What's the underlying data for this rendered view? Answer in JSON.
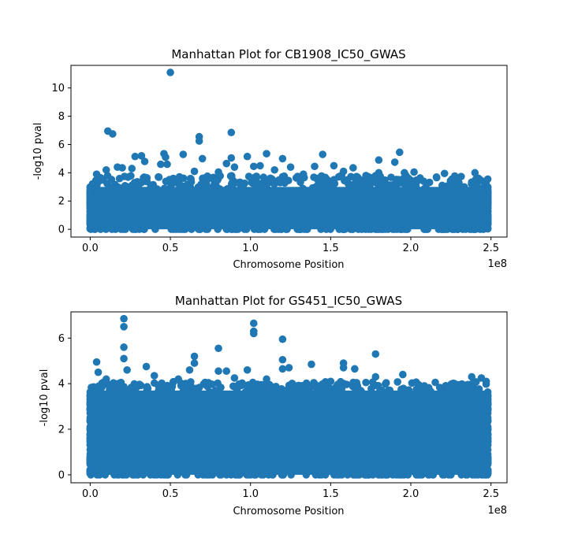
{
  "colors": {
    "series": "#1f77b4",
    "axes": "#000000",
    "background": "#ffffff"
  },
  "chart_data": [
    {
      "type": "scatter",
      "title": "Manhattan Plot for CB1908_IC50_GWAS",
      "xlabel": "Chromosome Position",
      "ylabel": "-log10 pval",
      "x_offset_label": "1e8",
      "xlim": [
        -12000000.0,
        260000000.0
      ],
      "ylim": [
        -0.55,
        11.6
      ],
      "xticks": [
        0,
        50000000.0,
        100000000.0,
        150000000.0,
        200000000.0,
        250000000.0
      ],
      "xtick_labels": [
        "0.0",
        "0.5",
        "1.0",
        "1.5",
        "2.0",
        "2.5"
      ],
      "yticks": [
        0,
        2,
        4,
        6,
        8,
        10
      ],
      "ytick_labels": [
        "0",
        "2",
        "4",
        "6",
        "8",
        "10"
      ],
      "grid": false,
      "marker": "circle",
      "dense_band": {
        "x_range": [
          0,
          248000000.0
        ],
        "y_range": [
          0,
          3.0
        ],
        "note": "points densely cover this region"
      },
      "points": [
        [
          50000000.0,
          11.1
        ],
        [
          11000000.0,
          6.95
        ],
        [
          14000000.0,
          6.75
        ],
        [
          68000000.0,
          6.55
        ],
        [
          68000000.0,
          6.25
        ],
        [
          88000000.0,
          6.85
        ],
        [
          46000000.0,
          5.35
        ],
        [
          58000000.0,
          5.3
        ],
        [
          47000000.0,
          5.1
        ],
        [
          28000000.0,
          5.15
        ],
        [
          32000000.0,
          5.2
        ],
        [
          70000000.0,
          5.0
        ],
        [
          88000000.0,
          5.05
        ],
        [
          98000000.0,
          5.15
        ],
        [
          110000000.0,
          5.35
        ],
        [
          120000000.0,
          5.0
        ],
        [
          145000000.0,
          5.3
        ],
        [
          180000000.0,
          4.9
        ],
        [
          193000000.0,
          5.45
        ],
        [
          190000000.0,
          4.75
        ],
        [
          34000000.0,
          4.8
        ],
        [
          44000000.0,
          4.6
        ],
        [
          48000000.0,
          4.6
        ],
        [
          85000000.0,
          4.65
        ],
        [
          90000000.0,
          4.4
        ],
        [
          102000000.0,
          4.45
        ],
        [
          106000000.0,
          4.5
        ],
        [
          125000000.0,
          4.4
        ],
        [
          140000000.0,
          4.45
        ],
        [
          152000000.0,
          4.5
        ],
        [
          164000000.0,
          4.35
        ],
        [
          172000000.0,
          3.8
        ],
        [
          180000000.0,
          4.0
        ],
        [
          196000000.0,
          4.0
        ],
        [
          202000000.0,
          4.05
        ],
        [
          216000000.0,
          3.7
        ],
        [
          221000000.0,
          3.95
        ],
        [
          240000000.0,
          4.0
        ],
        [
          248000000.0,
          3.55
        ],
        [
          17000000.0,
          4.4
        ],
        [
          20000000.0,
          4.35
        ],
        [
          10000000.0,
          4.2
        ],
        [
          4000000.0,
          3.9
        ],
        [
          26000000.0,
          4.3
        ],
        [
          65000000.0,
          4.1
        ],
        [
          80000000.0,
          4.05
        ],
        [
          115000000.0,
          4.2
        ],
        [
          133000000.0,
          3.9
        ],
        [
          158000000.0,
          4.1
        ],
        [
          208000000.0,
          3.4
        ],
        [
          230000000.0,
          3.3
        ],
        [
          244000000.0,
          2.9
        ]
      ]
    },
    {
      "type": "scatter",
      "title": "Manhattan Plot for GS451_IC50_GWAS",
      "xlabel": "Chromosome Position",
      "ylabel": "-log10 pval",
      "x_offset_label": "1e8",
      "xlim": [
        -12000000.0,
        260000000.0
      ],
      "ylim": [
        -0.35,
        7.15
      ],
      "xticks": [
        0,
        50000000.0,
        100000000.0,
        150000000.0,
        200000000.0,
        250000000.0
      ],
      "xtick_labels": [
        "0.0",
        "0.5",
        "1.0",
        "1.5",
        "2.0",
        "2.5"
      ],
      "yticks": [
        0,
        2,
        4,
        6
      ],
      "ytick_labels": [
        "0",
        "2",
        "4",
        "6"
      ],
      "grid": false,
      "marker": "circle",
      "dense_band": {
        "x_range": [
          0,
          248000000.0
        ],
        "y_range": [
          0,
          3.7
        ],
        "note": "points densely cover this region"
      },
      "points": [
        [
          21000000.0,
          6.85
        ],
        [
          21000000.0,
          6.5
        ],
        [
          21000000.0,
          5.6
        ],
        [
          21000000.0,
          5.1
        ],
        [
          102000000.0,
          6.65
        ],
        [
          102000000.0,
          6.3
        ],
        [
          102000000.0,
          6.2
        ],
        [
          120000000.0,
          5.95
        ],
        [
          65000000.0,
          5.2
        ],
        [
          65000000.0,
          4.9
        ],
        [
          80000000.0,
          5.55
        ],
        [
          178000000.0,
          5.3
        ],
        [
          4000000.0,
          4.95
        ],
        [
          5000000.0,
          4.5
        ],
        [
          23000000.0,
          4.6
        ],
        [
          35000000.0,
          4.75
        ],
        [
          62000000.0,
          4.6
        ],
        [
          80000000.0,
          4.55
        ],
        [
          85000000.0,
          4.55
        ],
        [
          98000000.0,
          4.6
        ],
        [
          120000000.0,
          5.05
        ],
        [
          120000000.0,
          4.65
        ],
        [
          124000000.0,
          4.7
        ],
        [
          138000000.0,
          4.85
        ],
        [
          158000000.0,
          4.9
        ],
        [
          158000000.0,
          4.7
        ],
        [
          165000000.0,
          4.65
        ],
        [
          178000000.0,
          4.3
        ],
        [
          195000000.0,
          4.4
        ],
        [
          230000000.0,
          3.95
        ],
        [
          238000000.0,
          4.3
        ],
        [
          244000000.0,
          4.25
        ],
        [
          247000000.0,
          4.1
        ],
        [
          10000000.0,
          4.2
        ],
        [
          40000000.0,
          4.35
        ],
        [
          55000000.0,
          4.2
        ],
        [
          90000000.0,
          4.25
        ],
        [
          110000000.0,
          4.2
        ],
        [
          150000000.0,
          4.1
        ],
        [
          172000000.0,
          4.05
        ],
        [
          205000000.0,
          3.95
        ],
        [
          222000000.0,
          3.9
        ],
        [
          240000000.0,
          3.7
        ]
      ]
    }
  ]
}
